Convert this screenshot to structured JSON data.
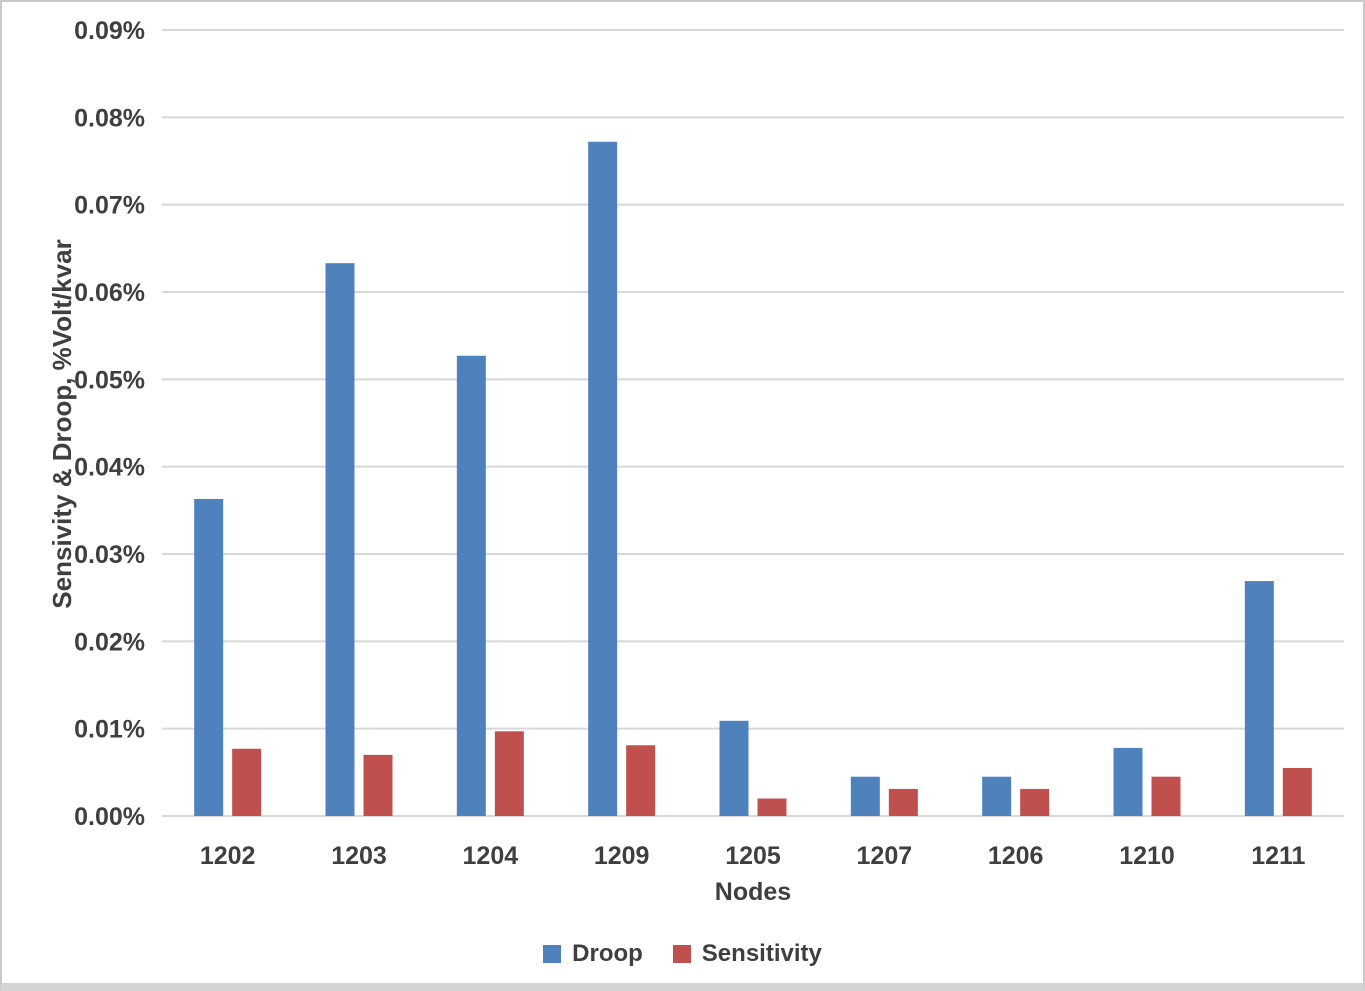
{
  "chart_data": {
    "type": "bar",
    "title": "",
    "xlabel": "Nodes",
    "ylabel": "Sensivity & Droop, %Volt/kvar",
    "categories": [
      "1202",
      "1203",
      "1204",
      "1209",
      "1205",
      "1207",
      "1206",
      "1210",
      "1211"
    ],
    "series": [
      {
        "name": "Droop",
        "color": "#4F81BD",
        "values": [
          0.0363,
          0.0633,
          0.0527,
          0.0772,
          0.0109,
          0.0045,
          0.0045,
          0.0078,
          0.0269
        ]
      },
      {
        "name": "Sensitivity",
        "color": "#C0504D",
        "values": [
          0.0077,
          0.007,
          0.0097,
          0.0081,
          0.002,
          0.0031,
          0.0031,
          0.0045,
          0.0055
        ]
      }
    ],
    "value_unit": "%Volt/kvar",
    "ylim": [
      0,
      0.09
    ],
    "y_tick_values": [
      0,
      0.01,
      0.02,
      0.03,
      0.04,
      0.05,
      0.06,
      0.07,
      0.08,
      0.09
    ],
    "y_ticks": [
      "0.00%",
      "0.01%",
      "0.02%",
      "0.03%",
      "0.04%",
      "0.05%",
      "0.06%",
      "0.07%",
      "0.08%",
      "0.09%"
    ],
    "grid": true,
    "legend_position": "bottom",
    "colors": {
      "gridline": "#D8D8D8",
      "axis_line": "#D8D8D8",
      "axis_text": "#3F3F3F"
    }
  }
}
